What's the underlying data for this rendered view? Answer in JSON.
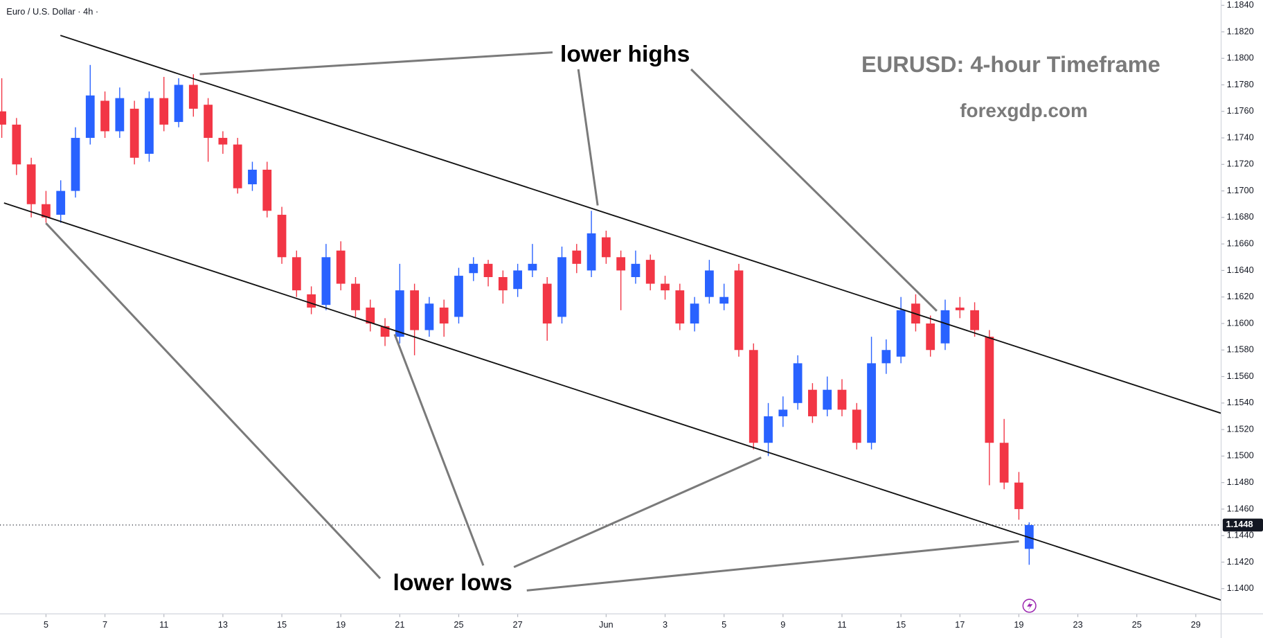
{
  "chart_data": {
    "type": "candlestick",
    "symbol": "Euro / U.S. Dollar · 4h ·",
    "title": "EURUSD: 4-hour Timeframe",
    "subtitle": "forexgdp.com",
    "annotations": [
      "lower highs",
      "lower lows"
    ],
    "up_color": "#2962ff",
    "down_color": "#f23645",
    "x": [
      -1.5,
      -1,
      -0.5,
      0,
      0.5,
      1,
      1.5,
      2,
      2.5,
      3,
      3.5,
      4,
      4.5,
      5,
      5.5,
      6,
      6.5,
      7,
      7.5,
      8,
      8.5,
      9,
      9.5,
      10,
      10.5,
      11,
      11.5,
      12,
      12.5,
      13,
      13.5,
      14,
      14.5,
      15,
      15.5,
      16,
      16.5,
      17,
      17.5,
      18,
      18.5,
      19,
      19.5,
      20,
      20.5,
      21,
      21.5,
      22,
      22.5,
      23,
      23.5,
      24,
      24.5,
      25,
      25.5,
      26,
      26.5,
      27,
      27.5,
      28,
      28.5,
      29,
      29.5,
      30,
      30.5,
      31,
      31.5,
      32,
      32.5,
      33,
      33.35
    ],
    "open": [
      1.176,
      1.175,
      1.172,
      1.169,
      1.1682,
      1.17,
      1.174,
      1.1768,
      1.1745,
      1.1762,
      1.1728,
      1.177,
      1.1752,
      1.178,
      1.1765,
      1.174,
      1.1735,
      1.1705,
      1.1716,
      1.1682,
      1.165,
      1.1622,
      1.1614,
      1.1655,
      1.163,
      1.1612,
      1.1598,
      1.159,
      1.1625,
      1.1595,
      1.1612,
      1.1605,
      1.1638,
      1.1645,
      1.1635,
      1.1626,
      1.164,
      1.163,
      1.1605,
      1.1655,
      1.164,
      1.1665,
      1.165,
      1.1635,
      1.1648,
      1.163,
      1.1625,
      1.16,
      1.162,
      1.1615,
      1.164,
      1.158,
      1.151,
      1.153,
      1.154,
      1.155,
      1.1535,
      1.155,
      1.1535,
      1.151,
      1.157,
      1.1575,
      1.1615,
      1.16,
      1.1585,
      1.1612,
      1.161,
      1.159,
      1.151,
      1.148,
      1.143
    ],
    "high": [
      1.1785,
      1.1755,
      1.1725,
      1.17,
      1.1708,
      1.1748,
      1.1795,
      1.1775,
      1.1778,
      1.1768,
      1.1775,
      1.1786,
      1.1785,
      1.1788,
      1.177,
      1.1745,
      1.174,
      1.1722,
      1.1722,
      1.1688,
      1.1655,
      1.1628,
      1.166,
      1.1662,
      1.1635,
      1.1618,
      1.1604,
      1.1645,
      1.163,
      1.162,
      1.1618,
      1.1642,
      1.165,
      1.1648,
      1.164,
      1.1645,
      1.166,
      1.1635,
      1.1658,
      1.166,
      1.1685,
      1.167,
      1.1655,
      1.1655,
      1.1652,
      1.1636,
      1.163,
      1.162,
      1.1648,
      1.163,
      1.1645,
      1.1585,
      1.154,
      1.1545,
      1.1576,
      1.1555,
      1.156,
      1.1558,
      1.154,
      1.159,
      1.1588,
      1.162,
      1.1622,
      1.1606,
      1.1618,
      1.162,
      1.1616,
      1.1595,
      1.1528,
      1.1488,
      1.145
    ],
    "low": [
      1.174,
      1.1712,
      1.168,
      1.1676,
      1.1676,
      1.1695,
      1.1735,
      1.174,
      1.174,
      1.172,
      1.1722,
      1.1745,
      1.1748,
      1.1756,
      1.1722,
      1.1728,
      1.1698,
      1.17,
      1.168,
      1.1645,
      1.162,
      1.1607,
      1.161,
      1.1625,
      1.1605,
      1.1594,
      1.1583,
      1.1585,
      1.1576,
      1.159,
      1.159,
      1.16,
      1.1632,
      1.1628,
      1.1615,
      1.162,
      1.1635,
      1.1587,
      1.16,
      1.1638,
      1.1635,
      1.1645,
      1.161,
      1.163,
      1.1625,
      1.1618,
      1.1595,
      1.1594,
      1.1615,
      1.161,
      1.1575,
      1.1505,
      1.15,
      1.1522,
      1.1535,
      1.1525,
      1.153,
      1.153,
      1.1505,
      1.1505,
      1.1562,
      1.157,
      1.1594,
      1.1575,
      1.158,
      1.1604,
      1.159,
      1.1478,
      1.1475,
      1.1452,
      1.1418
    ],
    "close": [
      1.175,
      1.172,
      1.169,
      1.168,
      1.17,
      1.174,
      1.1772,
      1.1745,
      1.177,
      1.1725,
      1.177,
      1.175,
      1.178,
      1.1762,
      1.174,
      1.1735,
      1.1702,
      1.1716,
      1.1685,
      1.165,
      1.1625,
      1.1612,
      1.165,
      1.163,
      1.161,
      1.16,
      1.159,
      1.1625,
      1.1595,
      1.1615,
      1.16,
      1.1636,
      1.1645,
      1.1635,
      1.1625,
      1.164,
      1.1645,
      1.16,
      1.165,
      1.1645,
      1.1668,
      1.165,
      1.164,
      1.1645,
      1.163,
      1.1625,
      1.16,
      1.1615,
      1.164,
      1.162,
      1.158,
      1.151,
      1.153,
      1.1535,
      1.157,
      1.153,
      1.155,
      1.1535,
      1.151,
      1.157,
      1.158,
      1.161,
      1.16,
      1.158,
      1.161,
      1.161,
      1.1595,
      1.151,
      1.148,
      1.146,
      1.1448
    ],
    "xlim": [
      -1.56,
      39.86
    ],
    "xticks": [
      {
        "value": 0,
        "label": "5"
      },
      {
        "value": 2,
        "label": "7"
      },
      {
        "value": 4,
        "label": "11"
      },
      {
        "value": 6,
        "label": "13"
      },
      {
        "value": 8,
        "label": "15"
      },
      {
        "value": 10,
        "label": "19"
      },
      {
        "value": 12,
        "label": "21"
      },
      {
        "value": 14,
        "label": "25"
      },
      {
        "value": 16,
        "label": "27"
      },
      {
        "value": 19,
        "label": "Jun"
      },
      {
        "value": 21,
        "label": "3"
      },
      {
        "value": 23,
        "label": "5"
      },
      {
        "value": 25,
        "label": "9"
      },
      {
        "value": 27,
        "label": "11"
      },
      {
        "value": 29,
        "label": "15"
      },
      {
        "value": 31,
        "label": "17"
      },
      {
        "value": 33,
        "label": "19"
      },
      {
        "value": 35,
        "label": "23"
      },
      {
        "value": 37,
        "label": "25"
      },
      {
        "value": 39,
        "label": "29"
      }
    ],
    "ylim": [
      1.1381,
      1.1844
    ],
    "yticks": [
      {
        "value": 1.14,
        "label": "1.1400"
      },
      {
        "value": 1.142,
        "label": "1.1420"
      },
      {
        "value": 1.144,
        "label": "1.1440"
      },
      {
        "value": 1.146,
        "label": "1.1460"
      },
      {
        "value": 1.148,
        "label": "1.1480"
      },
      {
        "value": 1.15,
        "label": "1.1500"
      },
      {
        "value": 1.152,
        "label": "1.1520"
      },
      {
        "value": 1.154,
        "label": "1.1540"
      },
      {
        "value": 1.156,
        "label": "1.1560"
      },
      {
        "value": 1.158,
        "label": "1.1580"
      },
      {
        "value": 1.16,
        "label": "1.1600"
      },
      {
        "value": 1.162,
        "label": "1.1620"
      },
      {
        "value": 1.164,
        "label": "1.1640"
      },
      {
        "value": 1.166,
        "label": "1.1660"
      },
      {
        "value": 1.168,
        "label": "1.1680"
      },
      {
        "value": 1.17,
        "label": "1.1700"
      },
      {
        "value": 1.172,
        "label": "1.1720"
      },
      {
        "value": 1.174,
        "label": "1.1740"
      },
      {
        "value": 1.176,
        "label": "1.1760"
      },
      {
        "value": 1.178,
        "label": "1.1780"
      },
      {
        "value": 1.18,
        "label": "1.1800"
      },
      {
        "value": 1.182,
        "label": "1.1820"
      },
      {
        "value": 1.184,
        "label": "1.1840"
      }
    ]
  }
}
